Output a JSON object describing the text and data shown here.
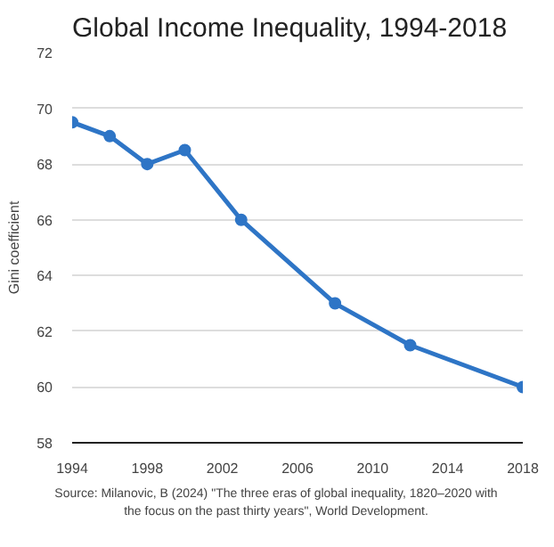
{
  "chart_data": {
    "type": "line",
    "title": "Global Income Inequality, 1994-2018",
    "ylabel": "Gini coefficient",
    "x": [
      1994,
      1996,
      1998,
      2000,
      2003,
      2008,
      2012,
      2018
    ],
    "series": [
      {
        "color": "#2e75c6",
        "values": [
          69.5,
          69,
          68,
          68.5,
          66,
          63,
          61.5,
          60
        ]
      }
    ],
    "xlim": [
      1994,
      2018
    ],
    "xticks": [
      1994,
      1998,
      2002,
      2006,
      2010,
      2014,
      2018
    ],
    "ylim": [
      58,
      72
    ],
    "yticks": [
      58,
      60,
      62,
      64,
      66,
      68,
      70,
      72
    ],
    "grid": "y",
    "marker": "circle",
    "line_style": "solid",
    "annotations": [
      "Source: Milanovic, B (2024) \"The three eras of  global inequality, 1820–2020 with the focus on the past thirty years\", World Development."
    ]
  }
}
